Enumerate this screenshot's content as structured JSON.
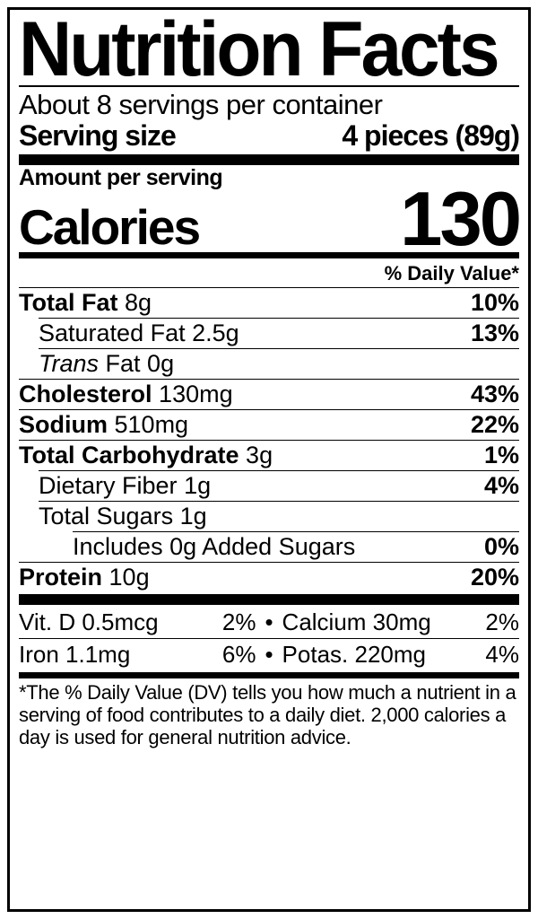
{
  "title": "Nutrition Facts",
  "servings_per_container": "About 8 servings per container",
  "serving_size_label": "Serving size",
  "serving_size_value": "4 pieces (89g)",
  "amount_per_serving": "Amount per serving",
  "calories_label": "Calories",
  "calories_value": "130",
  "daily_value_header": "% Daily Value*",
  "nutrients": {
    "total_fat": {
      "name": "Total Fat",
      "amount": "8g",
      "dv": "10%"
    },
    "sat_fat": {
      "name": "Saturated Fat",
      "amount": "2.5g",
      "dv": "13%"
    },
    "trans_fat": {
      "name_prefix": "Trans",
      "name_rest": " Fat",
      "amount": "0g"
    },
    "cholesterol": {
      "name": "Cholesterol",
      "amount": "130mg",
      "dv": "43%"
    },
    "sodium": {
      "name": "Sodium",
      "amount": "510mg",
      "dv": "22%"
    },
    "total_carb": {
      "name": "Total Carbohydrate",
      "amount": "3g",
      "dv": "1%"
    },
    "fiber": {
      "name": "Dietary Fiber",
      "amount": "1g",
      "dv": "4%"
    },
    "total_sugars": {
      "name": "Total Sugars",
      "amount": "1g"
    },
    "added_sugars": {
      "text": "Includes 0g Added Sugars",
      "dv": "0%"
    },
    "protein": {
      "name": "Protein",
      "amount": "10g",
      "dv": "20%"
    }
  },
  "vitamins": {
    "vit_d": {
      "label": "Vit. D 0.5mcg",
      "dv": "2%"
    },
    "calcium": {
      "label": "Calcium 30mg",
      "dv": "2%"
    },
    "iron": {
      "label": "Iron 1.1mg",
      "dv": "6%"
    },
    "potassium": {
      "label": "Potas. 220mg",
      "dv": "4%"
    }
  },
  "footnote": "*The % Daily Value (DV) tells you how much a nutrient in a serving of food contributes to a daily diet. 2,000 calories a day is used for general nutrition advice.",
  "colors": {
    "text": "#000000",
    "background": "#ffffff",
    "rule": "#000000"
  },
  "bullet": "•"
}
